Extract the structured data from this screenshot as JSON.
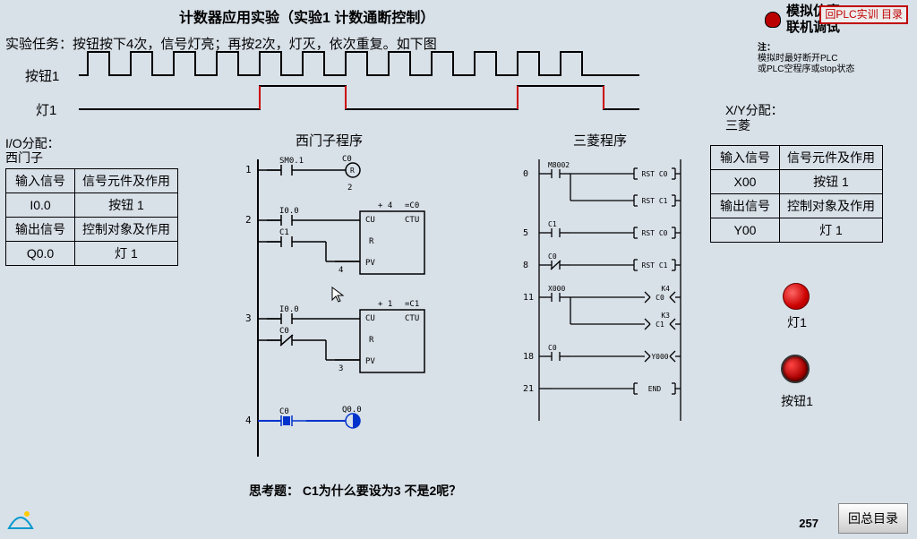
{
  "title": "计数器应用实验（实验1 计数通断控制）",
  "task": "实验任务：按钮按下4次，信号灯亮；再按2次，灯灭，依次重复。如下图",
  "labels": {
    "btn1": "按钮1",
    "light1": "灯1",
    "io_alloc": "I/O分配：",
    "io_sub": "西门子",
    "siemens_prog": "西门子程序",
    "mitsu_prog": "三菱程序",
    "xy_alloc": "X/Y分配：",
    "xy_sub": "三菱"
  },
  "table_left": {
    "rows": [
      [
        "输入信号",
        "信号元件及作用"
      ],
      [
        "I0.0",
        "按钮 1"
      ],
      [
        "输出信号",
        "控制对象及作用"
      ],
      [
        "Q0.0",
        "灯 1"
      ]
    ]
  },
  "table_right": {
    "rows": [
      [
        "输入信号",
        "信号元件及作用"
      ],
      [
        "X00",
        "按钮 1"
      ],
      [
        "输出信号",
        "控制对象及作用"
      ],
      [
        "Y00",
        "灯 1"
      ]
    ]
  },
  "top_right": {
    "sim": "模拟仿真",
    "online": "联机调试",
    "return_top": "回PLC实训\n目录"
  },
  "note": {
    "title": "注：",
    "l1": "模拟时最好断开PLC",
    "l2": "或PLC空程序或stop状态"
  },
  "indicators": {
    "light1": "灯1",
    "btn1": "按钮1"
  },
  "think": "思考题：  C1为什么要设为3  不是2呢？",
  "page": "257",
  "return_bottom": "回总目录",
  "waveform": {
    "pulse_count": 12,
    "pulse_width": 24,
    "pulse_gap": 24,
    "pulse_height": 26,
    "high_segments": [
      [
        4,
        9
      ]
    ],
    "color_main": "#000000",
    "color_edge": "#cc0000"
  },
  "siemens_ladder": {
    "rows": [
      {
        "rung": "1",
        "contacts": [
          {
            "tag": "SM0.1",
            "type": "NO"
          }
        ],
        "out": {
          "type": "coil",
          "tag": "C0",
          "sub": "R",
          "pv": "2"
        }
      },
      {
        "rung": "2",
        "contacts": [
          {
            "tag": "I0.0",
            "type": "NO"
          },
          {
            "tag": "C1",
            "type": "NO",
            "branch": true
          }
        ],
        "out": {
          "type": "CTU",
          "tag": "=C0",
          "top": "+ 4",
          "inputs": [
            "CU",
            "R",
            "PV"
          ],
          "pv": "4"
        }
      },
      {
        "rung": "3",
        "contacts": [
          {
            "tag": "I0.0",
            "type": "NO"
          },
          {
            "tag": "C0",
            "type": "NC",
            "branch": true
          }
        ],
        "out": {
          "type": "CTU",
          "tag": "=C1",
          "top": "+ 1",
          "inputs": [
            "CU",
            "R",
            "PV"
          ],
          "pv": "3"
        }
      },
      {
        "rung": "4",
        "contacts": [
          {
            "tag": "C0",
            "type": "NO",
            "active": true
          }
        ],
        "out": {
          "type": "coil",
          "tag": "Q0.0",
          "active": true
        }
      }
    ]
  },
  "mitsu_ladder": {
    "rows": [
      {
        "addr": "0",
        "contacts": [
          {
            "tag": "M8002",
            "type": "NO"
          }
        ],
        "outs": [
          "RST C0",
          "RST C1"
        ]
      },
      {
        "addr": "5",
        "contacts": [
          {
            "tag": "C1",
            "type": "NO"
          }
        ],
        "outs": [
          "RST C0"
        ]
      },
      {
        "addr": "8",
        "contacts": [
          {
            "tag": "C0",
            "type": "NC"
          }
        ],
        "outs": [
          "RST C1"
        ]
      },
      {
        "addr": "11",
        "contacts": [
          {
            "tag": "X000",
            "type": "NO"
          }
        ],
        "outs": [
          "C0",
          "C1"
        ],
        "params": [
          "K4",
          "K3"
        ],
        "coil": true
      },
      {
        "addr": "18",
        "contacts": [
          {
            "tag": "C0",
            "type": "NO"
          }
        ],
        "outs": [
          "Y000"
        ],
        "coil": true
      },
      {
        "addr": "21",
        "contacts": [],
        "outs": [
          "END"
        ]
      }
    ]
  },
  "colors": {
    "bg": "#d8e0e8",
    "line": "#000000",
    "active": "#0033cc",
    "red": "#cc0000"
  }
}
